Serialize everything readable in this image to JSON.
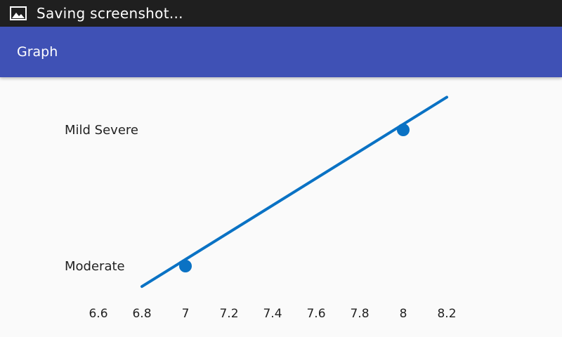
{
  "status_bar": {
    "icon": "image-icon",
    "text": "Saving screenshot..."
  },
  "app_bar": {
    "title": "Graph"
  },
  "colors": {
    "status_bar_bg": "#1f1f1f",
    "app_bar_bg": "#3f51b5",
    "series_color": "#0a72c4"
  },
  "chart_data": {
    "type": "line",
    "x_ticks": [
      "6.6",
      "6.8",
      "7",
      "7.2",
      "7.4",
      "7.6",
      "7.8",
      "8",
      "8.2"
    ],
    "y_ticks": [
      {
        "value": 0,
        "label": "Moderate"
      },
      {
        "value": 1,
        "label": "Mild Severe"
      }
    ],
    "line": {
      "x": [
        6.8,
        8.2
      ],
      "y": [
        -0.15,
        1.24
      ]
    },
    "points": [
      {
        "x": 7,
        "y": 0
      },
      {
        "x": 8,
        "y": 1
      }
    ],
    "xlim": [
      6.6,
      8.2
    ],
    "ylim": [
      0,
      1
    ],
    "grid": false
  }
}
